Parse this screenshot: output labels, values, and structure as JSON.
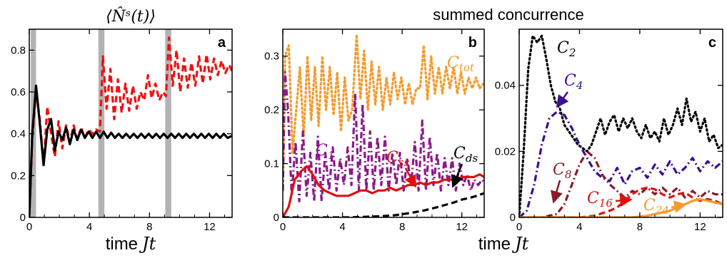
{
  "figure": {
    "title": "summed concurrence",
    "xlabel_prefix": "time",
    "xlabel_var": "Jt"
  },
  "colors": {
    "black": "#000000",
    "red_dashed": "#ee1111",
    "red_solid": "#dd1111",
    "orange": "#f59a2c",
    "purple": "#8a1a8a",
    "indigo": "#3a0f8e",
    "maroon": "#8b1a2b",
    "gray_band": "#b3b3b3"
  },
  "chart_data": [
    {
      "id": "a",
      "type": "line",
      "panel_label": "a",
      "title": "⟨N̂ˢ(t)⟩",
      "xlim": [
        0,
        13.5
      ],
      "ylim": [
        0,
        0.9
      ],
      "xticks": [
        0,
        4,
        8,
        12
      ],
      "yticks": [
        0,
        0.2,
        0.4,
        0.6,
        0.8
      ],
      "ytick_labels": [
        "0",
        "0.2",
        "0.4",
        "0.6",
        "0.8"
      ],
      "shaded_bands": [
        [
          0.1,
          0.45
        ],
        [
          4.6,
          5.0
        ],
        [
          9.05,
          9.45
        ]
      ],
      "series": [
        {
          "style": "dashed",
          "color": "#ee1111",
          "desc": "red dashed",
          "x": [
            0,
            0.2,
            0.45,
            0.7,
            0.95,
            1.2,
            1.45,
            1.7,
            1.95,
            2.2,
            2.45,
            2.7,
            2.95,
            3.2,
            3.45,
            3.7,
            3.95,
            4.2,
            4.45,
            4.7,
            4.9,
            5.15,
            5.4,
            5.65,
            5.9,
            6.15,
            6.4,
            6.65,
            6.9,
            7.15,
            7.4,
            7.65,
            7.9,
            8.15,
            8.4,
            8.65,
            8.9,
            9.1,
            9.3,
            9.55,
            9.8,
            10.05,
            10.3,
            10.55,
            10.8,
            11.05,
            11.3,
            11.55,
            11.8,
            12.05,
            12.3,
            12.55,
            12.8,
            13.05,
            13.3,
            13.5
          ],
          "y": [
            0,
            0.38,
            0.6,
            0.47,
            0.25,
            0.53,
            0.4,
            0.29,
            0.46,
            0.33,
            0.44,
            0.36,
            0.44,
            0.37,
            0.43,
            0.38,
            0.42,
            0.4,
            0.42,
            0.41,
            0.77,
            0.52,
            0.71,
            0.47,
            0.66,
            0.5,
            0.64,
            0.51,
            0.63,
            0.52,
            0.6,
            0.56,
            0.68,
            0.57,
            0.64,
            0.56,
            0.6,
            0.58,
            0.86,
            0.63,
            0.8,
            0.6,
            0.76,
            0.62,
            0.74,
            0.63,
            0.77,
            0.64,
            0.78,
            0.66,
            0.76,
            0.68,
            0.75,
            0.69,
            0.73,
            0.7
          ]
        },
        {
          "style": "solid",
          "color": "#000000",
          "desc": "black solid",
          "x": [
            0,
            0.2,
            0.45,
            0.7,
            0.95,
            1.2,
            1.45,
            1.7,
            1.95,
            2.2,
            2.45,
            2.7,
            2.95,
            3.2,
            3.45,
            3.7,
            3.95,
            4.2,
            4.45,
            4.7,
            4.95,
            5.2,
            5.45,
            5.7,
            5.95,
            6.2,
            6.45,
            6.7,
            6.95,
            7.2,
            7.45,
            7.7,
            7.95,
            8.2,
            8.45,
            8.7,
            8.95,
            9.2,
            9.45,
            9.7,
            9.95,
            10.2,
            10.45,
            10.7,
            10.95,
            11.2,
            11.45,
            11.7,
            11.95,
            12.2,
            12.45,
            12.7,
            12.95,
            13.2,
            13.5
          ],
          "y": [
            0,
            0.4,
            0.63,
            0.45,
            0.25,
            0.42,
            0.47,
            0.32,
            0.41,
            0.37,
            0.43,
            0.35,
            0.42,
            0.37,
            0.42,
            0.38,
            0.41,
            0.38,
            0.41,
            0.38,
            0.41,
            0.38,
            0.405,
            0.38,
            0.4,
            0.38,
            0.4,
            0.38,
            0.4,
            0.38,
            0.4,
            0.38,
            0.4,
            0.38,
            0.4,
            0.38,
            0.4,
            0.38,
            0.4,
            0.38,
            0.4,
            0.38,
            0.4,
            0.38,
            0.4,
            0.38,
            0.4,
            0.38,
            0.4,
            0.38,
            0.4,
            0.38,
            0.4,
            0.38,
            0.39
          ]
        }
      ]
    },
    {
      "id": "b",
      "type": "line",
      "panel_label": "b",
      "xlim": [
        0,
        13.5
      ],
      "ylim": [
        0,
        0.35
      ],
      "xticks": [
        0,
        4,
        8,
        12
      ],
      "yticks": [
        0,
        0.1,
        0.2,
        0.3
      ],
      "ytick_labels": [
        "0",
        "0.1",
        "0.2",
        "0.3"
      ],
      "series": [
        {
          "name": "C_tot",
          "style": "dotted",
          "color": "#f59a2c",
          "x": [
            0,
            0.15,
            0.4,
            0.65,
            0.9,
            1.15,
            1.4,
            1.65,
            1.9,
            2.15,
            2.4,
            2.65,
            2.9,
            3.15,
            3.4,
            3.65,
            3.9,
            4.15,
            4.4,
            4.65,
            4.95,
            5.2,
            5.45,
            5.7,
            5.95,
            6.2,
            6.45,
            6.7,
            6.95,
            7.2,
            7.45,
            7.7,
            7.95,
            8.2,
            8.45,
            8.7,
            8.95,
            9.2,
            9.45,
            9.7,
            9.95,
            10.2,
            10.45,
            10.7,
            10.95,
            11.2,
            11.45,
            11.7,
            11.95,
            12.2,
            12.45,
            12.7,
            12.95,
            13.2,
            13.5
          ],
          "y": [
            0.05,
            0.3,
            0.32,
            0.12,
            0.2,
            0.28,
            0.15,
            0.3,
            0.18,
            0.28,
            0.17,
            0.3,
            0.2,
            0.28,
            0.19,
            0.27,
            0.16,
            0.26,
            0.18,
            0.2,
            0.34,
            0.22,
            0.31,
            0.2,
            0.29,
            0.21,
            0.28,
            0.2,
            0.26,
            0.21,
            0.27,
            0.22,
            0.26,
            0.21,
            0.25,
            0.21,
            0.24,
            0.24,
            0.32,
            0.22,
            0.3,
            0.23,
            0.28,
            0.23,
            0.28,
            0.24,
            0.28,
            0.23,
            0.27,
            0.23,
            0.26,
            0.24,
            0.26,
            0.24,
            0.25
          ]
        },
        {
          "name": "C_1",
          "style": "dashdot",
          "color": "#8a1a8a",
          "x": [
            0,
            0.15,
            0.35,
            0.6,
            0.85,
            1.1,
            1.35,
            1.6,
            1.85,
            2.1,
            2.35,
            2.6,
            2.85,
            3.1,
            3.35,
            3.6,
            3.85,
            4.1,
            4.35,
            4.6,
            4.85,
            5.1,
            5.35,
            5.6,
            5.85,
            6.1,
            6.35,
            6.6,
            6.85,
            7.1,
            7.35,
            7.6,
            7.85,
            8.1,
            8.35,
            8.6,
            8.85,
            9.1,
            9.35,
            9.6,
            9.85,
            10.1,
            10.35,
            10.6,
            10.85,
            11.1,
            11.35,
            11.6,
            11.85,
            12.1,
            12.35,
            12.6,
            12.85,
            13.1,
            13.35,
            13.5
          ],
          "y": [
            0.05,
            0.27,
            0.2,
            0.04,
            0.14,
            0.03,
            0.16,
            0.04,
            0.12,
            0.03,
            0.15,
            0.03,
            0.12,
            0.05,
            0.13,
            0.05,
            0.11,
            0.06,
            0.13,
            0.06,
            0.23,
            0.05,
            0.21,
            0.05,
            0.16,
            0.05,
            0.15,
            0.06,
            0.15,
            0.05,
            0.12,
            0.06,
            0.12,
            0.05,
            0.11,
            0.06,
            0.14,
            0.05,
            0.18,
            0.05,
            0.15,
            0.06,
            0.12,
            0.05,
            0.11,
            0.06,
            0.11,
            0.05,
            0.1,
            0.06,
            0.08,
            0.05,
            0.07,
            0.06,
            0.07,
            0.065
          ]
        },
        {
          "name": "C_ss",
          "style": "solid",
          "color": "#dd1111",
          "x": [
            0,
            0.4,
            0.8,
            1.2,
            1.6,
            2.0,
            2.4,
            2.8,
            3.2,
            3.6,
            4.0,
            4.4,
            4.8,
            5.2,
            5.6,
            6.0,
            6.4,
            6.8,
            7.2,
            7.6,
            8.0,
            8.4,
            8.8,
            9.2,
            9.6,
            10.0,
            10.4,
            10.8,
            11.2,
            11.6,
            12.0,
            12.4,
            12.8,
            13.2,
            13.5
          ],
          "y": [
            0,
            0.02,
            0.07,
            0.085,
            0.095,
            0.08,
            0.06,
            0.05,
            0.045,
            0.04,
            0.04,
            0.04,
            0.045,
            0.05,
            0.05,
            0.045,
            0.05,
            0.05,
            0.055,
            0.05,
            0.055,
            0.06,
            0.06,
            0.065,
            0.06,
            0.065,
            0.065,
            0.07,
            0.07,
            0.07,
            0.075,
            0.075,
            0.075,
            0.08,
            0.075
          ]
        },
        {
          "name": "C_ds",
          "style": "dashed",
          "color": "#000000",
          "x": [
            0,
            4.5,
            5.5,
            6.5,
            7.5,
            8.5,
            9.5,
            10.5,
            11.5,
            12.0,
            12.5,
            13.0,
            13.5
          ],
          "y": [
            0,
            0,
            0.001,
            0.002,
            0.004,
            0.008,
            0.013,
            0.02,
            0.028,
            0.033,
            0.036,
            0.04,
            0.045
          ]
        }
      ],
      "annotations": [
        {
          "text": "C_tot"
        },
        {
          "text": "C_1"
        },
        {
          "text": "C_ss"
        },
        {
          "text": "C_ds"
        }
      ]
    },
    {
      "id": "c",
      "type": "line",
      "panel_label": "c",
      "xlim": [
        0,
        13.5
      ],
      "ylim": [
        0,
        0.057
      ],
      "xticks": [
        0,
        4,
        8,
        12
      ],
      "yticks": [
        0,
        0.02,
        0.04
      ],
      "ytick_labels": [
        "0",
        "0.02",
        "0.04"
      ],
      "series": [
        {
          "name": "C_2",
          "style": "dotted",
          "color": "#000000",
          "x": [
            0,
            0.3,
            0.6,
            0.9,
            1.2,
            1.5,
            1.8,
            2.1,
            2.4,
            2.7,
            3.0,
            3.3,
            3.6,
            3.9,
            4.2,
            4.5,
            4.8,
            5.1,
            5.4,
            5.7,
            6.0,
            6.3,
            6.6,
            6.9,
            7.2,
            7.5,
            7.8,
            8.1,
            8.4,
            8.7,
            9.0,
            9.3,
            9.6,
            9.9,
            10.2,
            10.5,
            10.8,
            11.1,
            11.4,
            11.7,
            12.0,
            12.3,
            12.6,
            12.9,
            13.2,
            13.5
          ],
          "y": [
            0,
            0.02,
            0.045,
            0.055,
            0.053,
            0.055,
            0.048,
            0.04,
            0.035,
            0.033,
            0.028,
            0.026,
            0.024,
            0.022,
            0.021,
            0.02,
            0.022,
            0.026,
            0.03,
            0.025,
            0.029,
            0.031,
            0.026,
            0.03,
            0.027,
            0.03,
            0.026,
            0.024,
            0.028,
            0.024,
            0.026,
            0.023,
            0.03,
            0.025,
            0.028,
            0.033,
            0.028,
            0.036,
            0.029,
            0.032,
            0.026,
            0.03,
            0.023,
            0.025,
            0.021,
            0.022
          ]
        },
        {
          "name": "C_4",
          "style": "dashdot",
          "color": "#3a0f8e",
          "x": [
            0,
            0.5,
            1.0,
            1.5,
            2.0,
            2.5,
            3.0,
            3.5,
            4.0,
            4.5,
            5.0,
            5.5,
            6.0,
            6.5,
            7.0,
            7.5,
            8.0,
            8.5,
            9.0,
            9.5,
            10.0,
            10.5,
            11.0,
            11.5,
            12.0,
            12.5,
            13.0,
            13.5
          ],
          "y": [
            0,
            0.002,
            0.01,
            0.022,
            0.03,
            0.032,
            0.031,
            0.027,
            0.022,
            0.018,
            0.014,
            0.012,
            0.011,
            0.015,
            0.01,
            0.014,
            0.015,
            0.012,
            0.016,
            0.013,
            0.017,
            0.013,
            0.015,
            0.018,
            0.014,
            0.017,
            0.015,
            0.017
          ]
        },
        {
          "name": "C_8",
          "style": "dashdot",
          "color": "#8b1a2b",
          "x": [
            0,
            1.5,
            2.5,
            3.0,
            3.5,
            4.0,
            4.5,
            5.0,
            5.5,
            6.0,
            6.5,
            7.0,
            7.5,
            8.0,
            8.5,
            9.0,
            9.5,
            10.0,
            10.5,
            11.0,
            11.5,
            12.0,
            12.5,
            13.0,
            13.5
          ],
          "y": [
            0,
            0,
            0.001,
            0.004,
            0.01,
            0.016,
            0.02,
            0.018,
            0.013,
            0.01,
            0.008,
            0.006,
            0.008,
            0.007,
            0.009,
            0.007,
            0.009,
            0.007,
            0.009,
            0.006,
            0.008,
            0.006,
            0.008,
            0.007,
            0.007
          ]
        },
        {
          "name": "C_16",
          "style": "dashed",
          "color": "#dd1111",
          "x": [
            0,
            4.0,
            5.0,
            6.0,
            6.5,
            7.0,
            7.5,
            8.0,
            8.5,
            9.0,
            9.5,
            10.0,
            10.5,
            11.0,
            11.5,
            12.0,
            12.5,
            13.0,
            13.5
          ],
          "y": [
            0,
            0,
            0.0005,
            0.002,
            0.003,
            0.005,
            0.007,
            0.0085,
            0.009,
            0.0085,
            0.007,
            0.006,
            0.007,
            0.0075,
            0.006,
            0.005,
            0.0055,
            0.005,
            0.004
          ]
        },
        {
          "name": "C_24",
          "style": "solid",
          "color": "#f59a2c",
          "x": [
            0,
            7.5,
            8.5,
            9.0,
            9.5,
            10.0,
            10.5,
            11.0,
            11.5,
            12.0,
            12.5,
            13.0,
            13.5
          ],
          "y": [
            0,
            0,
            0.0005,
            0.001,
            0.0015,
            0.002,
            0.003,
            0.004,
            0.005,
            0.0055,
            0.005,
            0.0045,
            0.004
          ]
        }
      ],
      "annotations": [
        {
          "text": "C_2"
        },
        {
          "text": "C_4"
        },
        {
          "text": "C_8"
        },
        {
          "text": "C_16"
        },
        {
          "text": "C_24"
        }
      ]
    }
  ]
}
